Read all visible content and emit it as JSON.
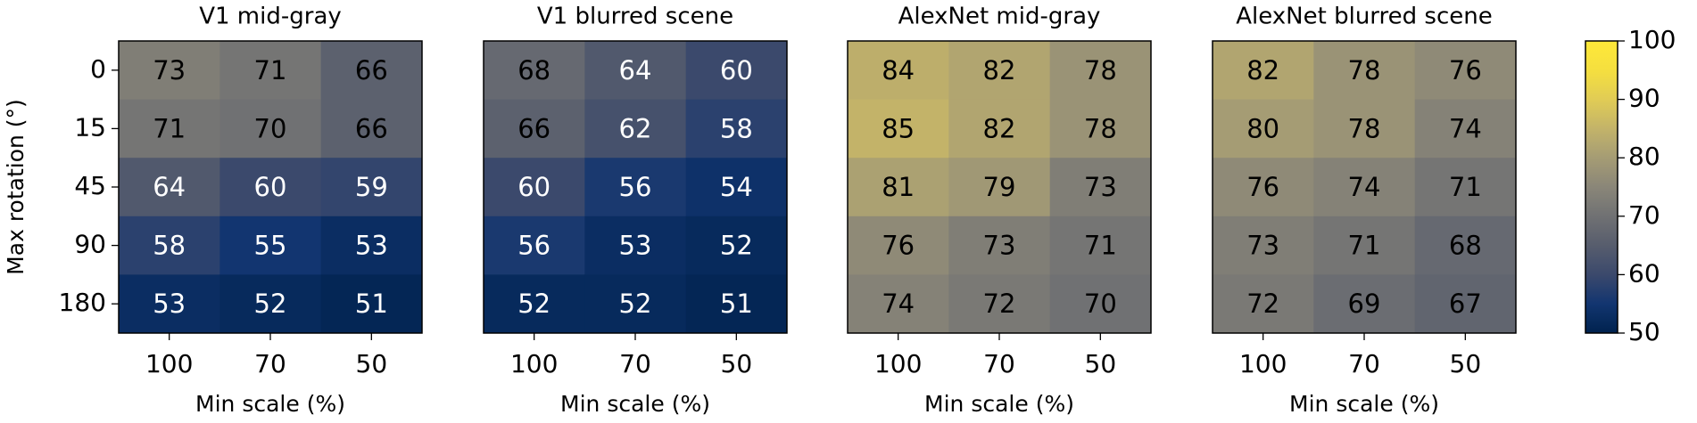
{
  "chart_data": [
    {
      "type": "heatmap",
      "title": "V1 mid-gray",
      "x": [
        "100",
        "70",
        "50"
      ],
      "y": [
        "0",
        "15",
        "45",
        "90",
        "180"
      ],
      "xlabel": "Min scale (%)",
      "ylabel": "Max rotation (°)",
      "values": [
        [
          73,
          71,
          66
        ],
        [
          71,
          70,
          66
        ],
        [
          64,
          60,
          59
        ],
        [
          58,
          55,
          53
        ],
        [
          53,
          52,
          51
        ]
      ]
    },
    {
      "type": "heatmap",
      "title": "V1 blurred scene",
      "x": [
        "100",
        "70",
        "50"
      ],
      "xlabel": "Min scale (%)",
      "values": [
        [
          68,
          64,
          60
        ],
        [
          66,
          62,
          58
        ],
        [
          60,
          56,
          54
        ],
        [
          56,
          53,
          52
        ],
        [
          52,
          52,
          51
        ]
      ]
    },
    {
      "type": "heatmap",
      "title": "AlexNet mid-gray",
      "x": [
        "100",
        "70",
        "50"
      ],
      "xlabel": "Min scale (%)",
      "values": [
        [
          84,
          82,
          78
        ],
        [
          85,
          82,
          78
        ],
        [
          81,
          79,
          73
        ],
        [
          76,
          73,
          71
        ],
        [
          74,
          72,
          70
        ]
      ]
    },
    {
      "type": "heatmap",
      "title": "AlexNet blurred scene",
      "x": [
        "100",
        "70",
        "50"
      ],
      "xlabel": "Min scale (%)",
      "values": [
        [
          82,
          78,
          76
        ],
        [
          80,
          78,
          74
        ],
        [
          76,
          74,
          71
        ],
        [
          73,
          71,
          68
        ],
        [
          72,
          69,
          67
        ]
      ]
    }
  ],
  "colorbar": {
    "colormap": "cividis",
    "lim": [
      50,
      100
    ],
    "ticks": [
      50,
      60,
      70,
      80,
      90,
      100
    ]
  }
}
